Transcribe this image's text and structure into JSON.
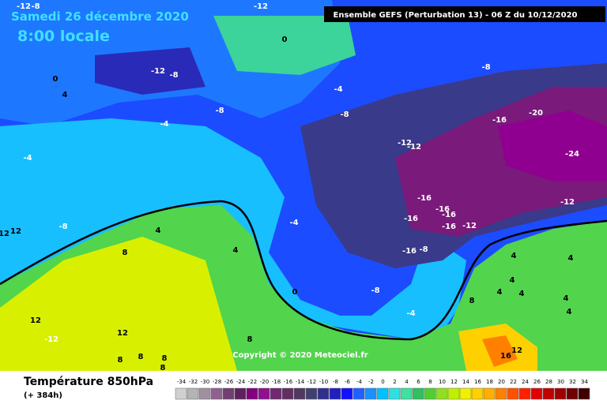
{
  "header": {
    "date": "Samedi 26 décembre 2020",
    "time": "8:00 locale",
    "run": "Ensemble GEFS  (Perturbation 13)  -  06 Z du 10/12/2020"
  },
  "map": {
    "contour_labels": [
      0,
      -12,
      -8,
      -8,
      -12,
      -12,
      0,
      4,
      -4,
      -8,
      -8,
      -8,
      -4,
      -16,
      -20,
      -4,
      -12,
      -12,
      -24,
      -12,
      -16,
      -16,
      -16,
      -16,
      -16,
      -12,
      -8,
      -4,
      12,
      12,
      4,
      8,
      4,
      -16,
      -8,
      4,
      4,
      4,
      4,
      4,
      4,
      4,
      8,
      0,
      -8,
      -4,
      12,
      -12,
      12,
      8,
      8,
      8,
      8,
      8,
      12,
      16
    ]
  },
  "copyright": "Copyright © 2020 Meteociel.fr",
  "footer": {
    "title": "Température 850hPa",
    "lead": "(+ 384h)"
  },
  "legend": {
    "ticks": [
      -34,
      -32,
      -30,
      -28,
      -26,
      -24,
      -22,
      -20,
      -18,
      -16,
      -14,
      -12,
      -10,
      -8,
      -6,
      -4,
      -2,
      0,
      2,
      4,
      6,
      8,
      10,
      12,
      14,
      16,
      18,
      20,
      22,
      24,
      26,
      28,
      30,
      32,
      34
    ],
    "colors": [
      "#d0d0d0",
      "#b4b4b4",
      "#a090a0",
      "#906090",
      "#704070",
      "#602060",
      "#800080",
      "#901090",
      "#702870",
      "#603060",
      "#503860",
      "#404070",
      "#303090",
      "#2020c0",
      "#1010ff",
      "#2060ff",
      "#1a90ff",
      "#00c0ff",
      "#30e0e0",
      "#40e0a0",
      "#30c060",
      "#50d030",
      "#90e020",
      "#c0f000",
      "#f0f000",
      "#ffd000",
      "#ffb000",
      "#ff8000",
      "#ff5000",
      "#ff2000",
      "#e00000",
      "#c00000",
      "#a00000",
      "#700000",
      "#400000"
    ]
  }
}
